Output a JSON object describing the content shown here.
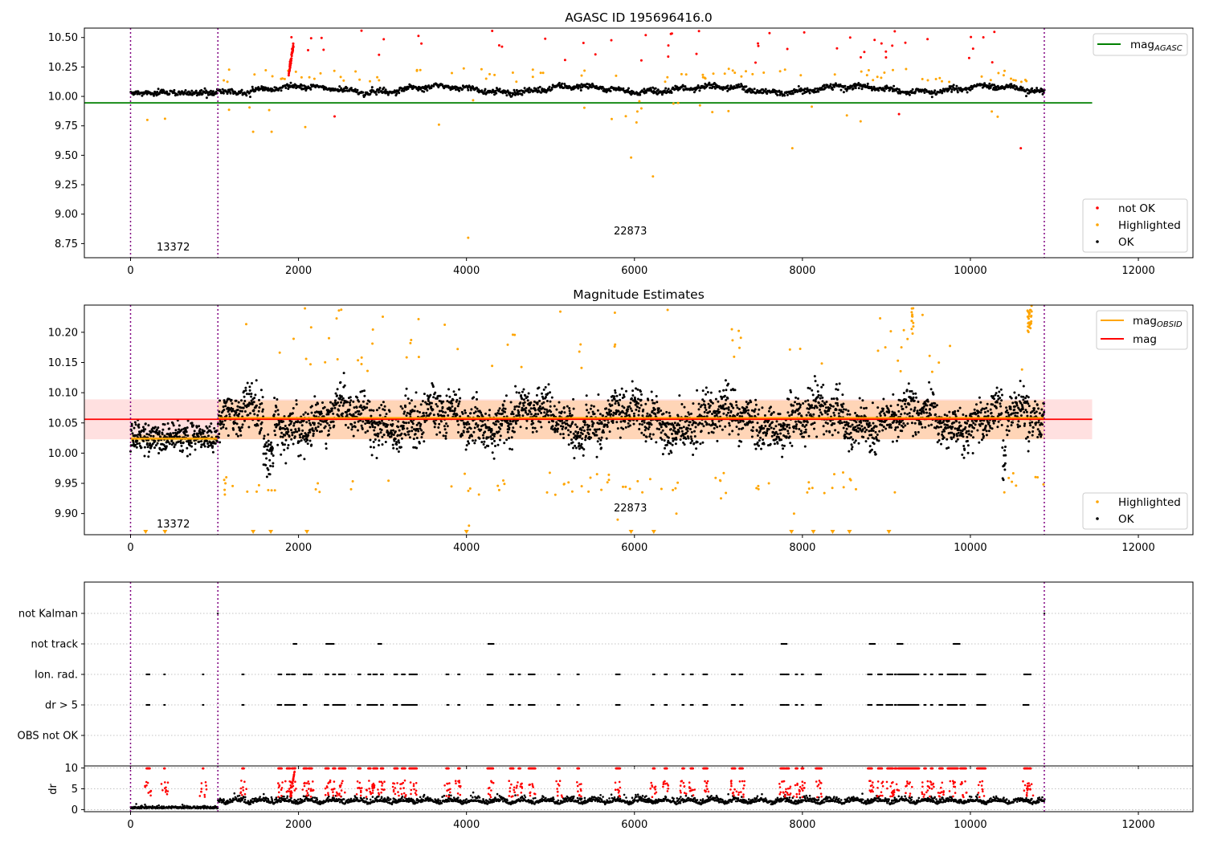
{
  "chart_data": [
    {
      "type": "scatter",
      "title": "AGASC ID 195696416.0",
      "xlabel": "",
      "ylabel": "",
      "xlim": [
        -550,
        12650
      ],
      "ylim": [
        8.63,
        10.58
      ],
      "x_ticks": [
        0,
        2000,
        4000,
        6000,
        8000,
        10000,
        12000
      ],
      "x_tick_labels": [
        "0",
        "2000",
        "4000",
        "6000",
        "8000",
        "10000",
        "12000"
      ],
      "y_ticks": [
        8.75,
        9.0,
        9.25,
        9.5,
        9.75,
        10.0,
        10.25,
        10.5
      ],
      "y_tick_labels": [
        "8.75",
        "9.00",
        "9.25",
        "9.50",
        "9.75",
        "10.00",
        "10.25",
        "10.50"
      ],
      "vlines": [
        0,
        1040,
        10880
      ],
      "annotations": [
        {
          "text": "13372",
          "x": 520,
          "y": 8.72
        },
        {
          "text": "22873",
          "x": 5960,
          "y": 8.86
        }
      ],
      "reference_lines": [
        {
          "name": "mag",
          "sub": "AGASC",
          "y": 9.945,
          "x_range": [
            -550,
            11450
          ],
          "color": "#008000"
        }
      ],
      "series": [
        {
          "name": "not OK",
          "color": "#ff0000"
        },
        {
          "name": "Highlighted",
          "color": "#ffa500"
        },
        {
          "name": "OK",
          "color": "#000000"
        }
      ],
      "legend": [
        "top-right",
        "bottom-right"
      ],
      "grid": false
    },
    {
      "type": "scatter",
      "title": "Magnitude Estimates",
      "xlabel": "",
      "ylabel": "",
      "xlim": [
        -550,
        12650
      ],
      "ylim": [
        9.865,
        10.245
      ],
      "x_ticks": [
        0,
        2000,
        4000,
        6000,
        8000,
        10000,
        12000
      ],
      "x_tick_labels": [
        "0",
        "2000",
        "4000",
        "6000",
        "8000",
        "10000",
        "12000"
      ],
      "y_ticks": [
        9.9,
        9.95,
        10.0,
        10.05,
        10.1,
        10.15,
        10.2
      ],
      "y_tick_labels": [
        "9.90",
        "9.95",
        "10.00",
        "10.05",
        "10.10",
        "10.15",
        "10.20"
      ],
      "vlines": [
        0,
        1040,
        10880
      ],
      "annotations": [
        {
          "text": "13372",
          "x": 520,
          "y": 9.882
        },
        {
          "text": "22873",
          "x": 5960,
          "y": 9.907
        }
      ],
      "reference_lines": [
        {
          "name": "mag",
          "sub": "OBSID",
          "segments": [
            {
              "x": [
                0,
                1040
              ],
              "y": 10.024
            },
            {
              "x": [
                1040,
                10880
              ],
              "y": 10.058
            }
          ],
          "band": [
            10.023,
            10.087
          ],
          "color": "#ffa500"
        },
        {
          "name": "mag",
          "sub": "",
          "y": 10.056,
          "x_range": [
            -550,
            11450
          ],
          "band": [
            10.023,
            10.089
          ],
          "color": "#ff0000"
        }
      ],
      "series": [
        {
          "name": "Highlighted",
          "color": "#ffa500"
        },
        {
          "name": "OK",
          "color": "#000000"
        }
      ],
      "legend": [
        "top-right",
        "bottom-right"
      ],
      "grid": false
    },
    {
      "type": "scatter",
      "title": "",
      "xlabel": "",
      "ylabel": "",
      "xlim": [
        -550,
        12650
      ],
      "categories": [
        "not Kalman",
        "not track",
        "Ion. rad.",
        "dr > 5",
        "OBS not OK"
      ],
      "vlines": [
        0,
        1040,
        10880
      ],
      "grid": "horizontal dotted",
      "flag_intervals": {
        "not Kalman": [
          [
            1040,
            1045
          ],
          [
            10880,
            10885
          ]
        ],
        "not track": [
          [
            1940,
            1980
          ],
          [
            2330,
            2420
          ],
          [
            2950,
            2990
          ],
          [
            4260,
            4330
          ],
          [
            7750,
            7820
          ],
          [
            8800,
            8870
          ],
          [
            9130,
            9200
          ],
          [
            9800,
            9880
          ]
        ],
        "Ion. rad.": [
          [
            190,
            230
          ],
          [
            400,
            410
          ],
          [
            860,
            870
          ],
          [
            1330,
            1350
          ],
          [
            1760,
            1800
          ],
          [
            1860,
            1900
          ],
          [
            1920,
            1960
          ],
          [
            2060,
            2100
          ],
          [
            2120,
            2160
          ],
          [
            2320,
            2360
          ],
          [
            2410,
            2440
          ],
          [
            2480,
            2560
          ],
          [
            2710,
            2740
          ],
          [
            2830,
            2860
          ],
          [
            2890,
            2940
          ],
          [
            2980,
            3010
          ],
          [
            3140,
            3180
          ],
          [
            3230,
            3270
          ],
          [
            3320,
            3410
          ],
          [
            3760,
            3790
          ],
          [
            3900,
            3920
          ],
          [
            4250,
            4320
          ],
          [
            4520,
            4560
          ],
          [
            4620,
            4640
          ],
          [
            4740,
            4820
          ],
          [
            5090,
            5110
          ],
          [
            5320,
            5340
          ],
          [
            5780,
            5830
          ],
          [
            6220,
            6240
          ],
          [
            6360,
            6390
          ],
          [
            6570,
            6590
          ],
          [
            6670,
            6700
          ],
          [
            6820,
            6870
          ],
          [
            7160,
            7200
          ],
          [
            7250,
            7290
          ],
          [
            7740,
            7790
          ],
          [
            7800,
            7840
          ],
          [
            7920,
            7940
          ],
          [
            7990,
            8010
          ],
          [
            8160,
            8230
          ],
          [
            8780,
            8830
          ],
          [
            8900,
            8950
          ],
          [
            9010,
            9080
          ],
          [
            9100,
            9120
          ],
          [
            9140,
            9390
          ],
          [
            9450,
            9470
          ],
          [
            9530,
            9550
          ],
          [
            9630,
            9670
          ],
          [
            9730,
            9850
          ],
          [
            9880,
            9950
          ],
          [
            10080,
            10180
          ],
          [
            10640,
            10690
          ],
          [
            10700,
            10720
          ]
        ],
        "dr > 5": [
          [
            190,
            230
          ],
          [
            400,
            410
          ],
          [
            860,
            870
          ],
          [
            1330,
            1350
          ],
          [
            1750,
            1800
          ],
          [
            1840,
            1960
          ],
          [
            2060,
            2100
          ],
          [
            2310,
            2360
          ],
          [
            2410,
            2560
          ],
          [
            2700,
            2740
          ],
          [
            2820,
            2940
          ],
          [
            2980,
            3010
          ],
          [
            3130,
            3180
          ],
          [
            3230,
            3410
          ],
          [
            3770,
            3790
          ],
          [
            3900,
            3920
          ],
          [
            4250,
            4320
          ],
          [
            4520,
            4560
          ],
          [
            4620,
            4640
          ],
          [
            4740,
            4820
          ],
          [
            5080,
            5110
          ],
          [
            5320,
            5340
          ],
          [
            5780,
            5830
          ],
          [
            6200,
            6230
          ],
          [
            6360,
            6390
          ],
          [
            6570,
            6590
          ],
          [
            6670,
            6700
          ],
          [
            6820,
            6870
          ],
          [
            7160,
            7200
          ],
          [
            7260,
            7290
          ],
          [
            7740,
            7790
          ],
          [
            7800,
            7840
          ],
          [
            7920,
            7940
          ],
          [
            7990,
            8010
          ],
          [
            8160,
            8230
          ],
          [
            8780,
            8830
          ],
          [
            8890,
            8960
          ],
          [
            9000,
            9080
          ],
          [
            9100,
            9120
          ],
          [
            9140,
            9390
          ],
          [
            9450,
            9470
          ],
          [
            9530,
            9550
          ],
          [
            9630,
            9670
          ],
          [
            9730,
            9840
          ],
          [
            9880,
            9940
          ],
          [
            10080,
            10180
          ],
          [
            10630,
            10700
          ]
        ]
      }
    },
    {
      "type": "scatter",
      "title": "",
      "xlabel": "",
      "ylabel": "dr",
      "xlim": [
        -550,
        12650
      ],
      "ylim": [
        -0.5,
        10.5
      ],
      "x_ticks": [
        0,
        2000,
        4000,
        6000,
        8000,
        10000,
        12000
      ],
      "x_tick_labels": [
        "0",
        "2000",
        "4000",
        "6000",
        "8000",
        "10000",
        "12000"
      ],
      "y_ticks": [
        0,
        5,
        10
      ],
      "y_tick_labels": [
        "0",
        "5",
        "10"
      ],
      "vlines": [
        0,
        1040,
        10880
      ],
      "grid": "horizontal dotted",
      "series": [
        {
          "name": "",
          "color": "#000000"
        },
        {
          "name": "",
          "color": "#ff0000"
        }
      ]
    }
  ]
}
